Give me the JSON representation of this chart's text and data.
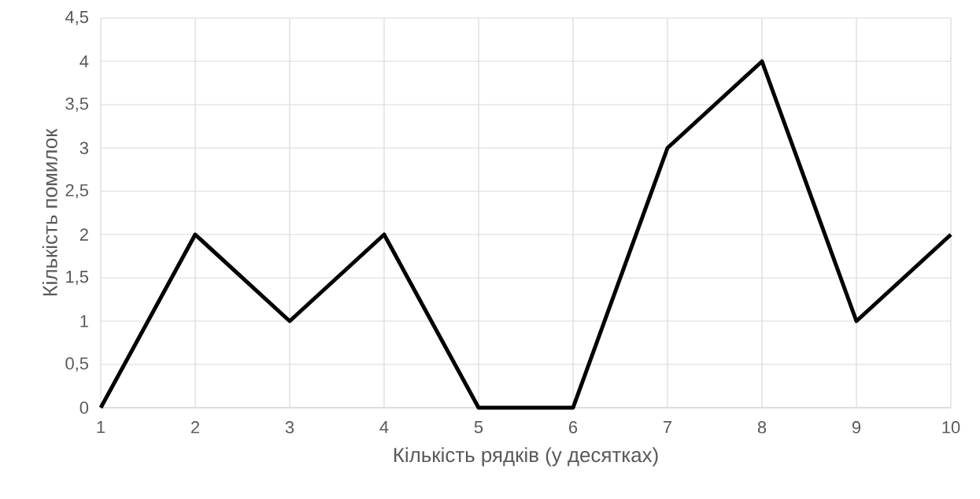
{
  "chart_data": {
    "type": "line",
    "xlabel": "Кількість рядків (у десятках)",
    "ylabel": "Кількість помилок",
    "categories": [
      "1",
      "2",
      "3",
      "4",
      "5",
      "6",
      "7",
      "8",
      "9",
      "10"
    ],
    "series": [
      {
        "color": "#000000",
        "values": [
          0,
          2,
          1,
          2,
          0,
          0,
          3,
          4,
          1,
          2
        ]
      }
    ],
    "ylim": [
      0,
      4.5
    ],
    "yticks": [
      0,
      {
        "value": 0.5,
        "label": "0,5"
      },
      1,
      {
        "value": 1.5,
        "label": "1,5"
      },
      2,
      {
        "value": 2.5,
        "label": "2,5"
      },
      3,
      {
        "value": 3.5,
        "label": "3,5"
      },
      4,
      {
        "value": 4.5,
        "label": "4,5"
      }
    ],
    "grid": true
  }
}
